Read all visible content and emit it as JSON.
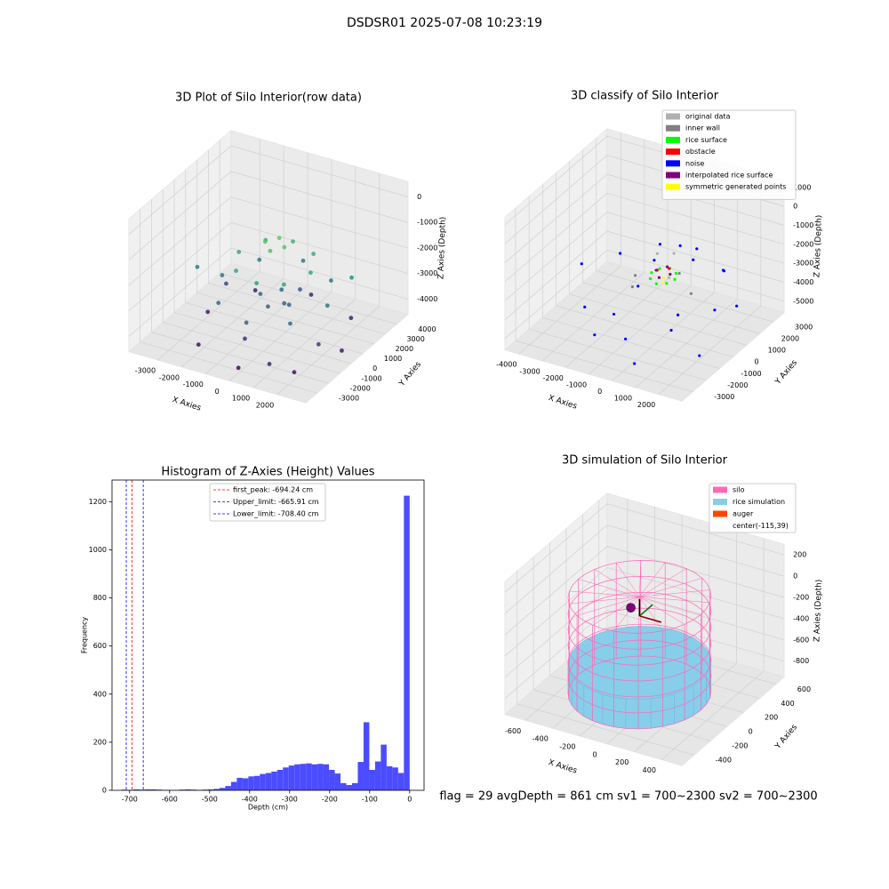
{
  "title": "DSDSR01 2025-07-08 10:23:19",
  "footer": "flag = 29  avgDepth = 861 cm  sv1 = 700~2300  sv2 = 700~2300",
  "chart_data": [
    {
      "type": "scatter3d",
      "title": "3D Plot of Silo Interior(row data)",
      "xlabel": "X Axies",
      "ylabel": "Y Axies",
      "zlabel": "Z Axies (Depth)",
      "colormap": "viridis",
      "xlim": [
        -4200,
        3200
      ],
      "ylim": [
        -4000,
        5000
      ],
      "zlim": [
        -4600,
        600
      ],
      "xticks": [
        -3000,
        -2000,
        -1000,
        0,
        1000,
        2000
      ],
      "yticks": [
        -3000,
        -2000,
        -1000,
        0,
        1000,
        2000,
        3000,
        4000
      ],
      "zticks": [
        -4000,
        -3000,
        -2000,
        -1000,
        0
      ],
      "x": [
        -1500,
        -1000,
        0,
        1000,
        1500,
        1000,
        0,
        -1000,
        -400,
        0,
        400,
        0,
        -2200,
        -1500,
        0,
        1500,
        2200,
        1500,
        0,
        -1500,
        -600,
        0,
        600,
        0,
        300,
        -2800,
        -2000,
        0,
        2000,
        2800,
        2000,
        0,
        -2000,
        -2600,
        2400,
        -300,
        200,
        -3000,
        2500,
        1200
      ],
      "y": [
        0,
        1300,
        1600,
        1300,
        0,
        -1300,
        -1600,
        -1300,
        0,
        400,
        0,
        -400,
        0,
        1800,
        2500,
        1800,
        0,
        -1800,
        -2500,
        -1800,
        0,
        600,
        0,
        -600,
        200,
        0,
        2500,
        3200,
        2500,
        0,
        -2500,
        -3200,
        -2500,
        1200,
        -1200,
        -2000,
        1800,
        -500,
        1500,
        -3000
      ],
      "z": [
        -1500,
        -1400,
        -1300,
        -1400,
        -1500,
        -1600,
        -1700,
        -1600,
        -800,
        -700,
        -800,
        -900,
        -2600,
        -2500,
        -2400,
        -2500,
        -2600,
        -2800,
        -2900,
        -2800,
        -2900,
        -2800,
        -3000,
        -3000,
        -3100,
        -4200,
        -4100,
        -4000,
        -4100,
        -4200,
        -4300,
        -4400,
        -4300,
        -3500,
        -3600,
        -3800,
        -3200,
        -2300,
        -2000,
        -4000
      ]
    },
    {
      "type": "scatter3d",
      "title": "3D classify of Silo Interior",
      "xlabel": "X Axies",
      "ylabel": "Y Axies",
      "zlabel": "Z Axies (Depth)",
      "xlim": [
        -4600,
        3000
      ],
      "ylim": [
        -3800,
        3800
      ],
      "zlim": [
        -5600,
        1400
      ],
      "xticks": [
        -4000,
        -3000,
        -2000,
        -1000,
        0,
        1000,
        2000
      ],
      "yticks": [
        -3000,
        -2000,
        -1000,
        0,
        1000,
        2000,
        3000
      ],
      "zticks": [
        -5000,
        -4000,
        -3000,
        -2000,
        -1000,
        0,
        1000
      ],
      "series": [
        {
          "name": "original data",
          "color": "#b0b0b0",
          "x": [
            -600,
            600,
            0
          ],
          "y": [
            600,
            -600,
            800
          ],
          "z": [
            -1800,
            -1900,
            -1700
          ]
        },
        {
          "name": "inner wall",
          "color": "#808080",
          "x": [
            -1200,
            1200,
            0,
            -800
          ],
          "y": [
            0,
            0,
            1200,
            -900
          ],
          "z": [
            -2800,
            -2900,
            -3000,
            -2700
          ]
        },
        {
          "name": "rice surface",
          "color": "#00ff00",
          "x": [
            -500,
            0,
            500,
            0,
            -350,
            350,
            350,
            -350
          ],
          "y": [
            0,
            500,
            0,
            -500,
            350,
            350,
            -350,
            -350
          ],
          "z": [
            -2400,
            -2300,
            -2400,
            -2500,
            -2350,
            -2350,
            -2450,
            -2450
          ]
        },
        {
          "name": "obstacle",
          "color": "#ff0000",
          "x": [
            200,
            -200
          ],
          "y": [
            100,
            -100
          ],
          "z": [
            -2000,
            -2100
          ]
        },
        {
          "name": "noise",
          "color": "#0000ff",
          "x": [
            -3000,
            -2000,
            -1000,
            0,
            1000,
            2000,
            2500,
            -2500,
            -1500,
            500,
            1500,
            -500,
            2000,
            -3500,
            0,
            1000,
            -1000,
            3000,
            -2000,
            1500
          ],
          "y": [
            2000,
            2800,
            3000,
            2500,
            2800,
            2000,
            -500,
            -1500,
            -2500,
            -3000,
            -2000,
            -1000,
            1000,
            0,
            -2800,
            500,
            1500,
            -2500,
            -200,
            -1500
          ],
          "z": [
            -3500,
            -4000,
            -3000,
            -2500,
            -3500,
            -4500,
            -3000,
            -4000,
            -4500,
            -5000,
            -3500,
            -2500,
            -2000,
            -3000,
            -4000,
            -1500,
            -2000,
            -4000,
            -5000,
            -3000
          ]
        },
        {
          "name": "interpolated rice surface",
          "color": "#800080",
          "x": [
            -300,
            0,
            300,
            0
          ],
          "y": [
            0,
            300,
            0,
            -300
          ],
          "z": [
            -2200,
            -2100,
            -2200,
            -2300
          ]
        },
        {
          "name": "symmetric generated points",
          "color": "#ffff00",
          "x": [
            100,
            -100
          ],
          "y": [
            -200,
            200
          ],
          "z": [
            -2600,
            -2650
          ]
        }
      ]
    },
    {
      "type": "histogram",
      "title": "Histogram of Z-Axies (Height) Values",
      "xlabel": "Depth (cm)",
      "ylabel": "Frequency",
      "color": "#4b4bff",
      "xlim": [
        -744,
        36
      ],
      "ylim": [
        0,
        1290
      ],
      "xticks": [
        -700,
        -600,
        -500,
        -400,
        -300,
        -200,
        -100,
        0
      ],
      "yticks": [
        0,
        200,
        400,
        600,
        800,
        1000,
        1200
      ],
      "bins": [
        -720,
        -705.6,
        -691.2,
        -676.8,
        -662.4,
        -648,
        -633.6,
        -619.2,
        -604.8,
        -590.4,
        -576,
        -561.6,
        -547.2,
        -532.8,
        -518.4,
        -504,
        -489.6,
        -475.2,
        -460.8,
        -446.4,
        -432,
        -417.6,
        -403.2,
        -388.8,
        -374.4,
        -360,
        -345.6,
        -331.2,
        -316.8,
        -302.4,
        -288,
        -273.6,
        -259.2,
        -244.8,
        -230.4,
        -216,
        -201.6,
        -187.2,
        -172.8,
        -158.4,
        -144,
        -129.6,
        -115.2,
        -100.8,
        -86.4,
        -72,
        -57.6,
        -43.2,
        -28.8,
        -14.4,
        0
      ],
      "values": [
        3,
        2,
        4,
        3,
        4,
        4,
        3,
        2,
        1,
        1,
        3,
        4,
        3,
        2,
        3,
        4,
        6,
        10,
        18,
        35,
        52,
        50,
        58,
        60,
        68,
        72,
        78,
        85,
        95,
        103,
        108,
        110,
        112,
        108,
        110,
        108,
        85,
        70,
        30,
        22,
        30,
        118,
        283,
        85,
        120,
        190,
        100,
        95,
        72,
        1225
      ],
      "lines": [
        {
          "label": "first_peak: -694.24 cm",
          "value": -694.24,
          "color": "#ff0000"
        },
        {
          "label": "Upper_limit: -665.91 cm",
          "value": -665.91,
          "color": "#0000ff"
        },
        {
          "label": "Lower_limit: -708.40 cm",
          "value": -708.4,
          "color": "#0000ff"
        }
      ]
    },
    {
      "type": "silo3d",
      "title": "3D simulation of Silo Interior",
      "xlabel": "X Axies",
      "ylabel": "Y Axies",
      "zlabel": "Z Axies (Depth)",
      "xlim": [
        -750,
        550
      ],
      "ylim": [
        -550,
        700
      ],
      "zlim": [
        -950,
        300
      ],
      "xticks": [
        -600,
        -400,
        -200,
        0,
        200,
        400
      ],
      "yticks": [
        -400,
        -200,
        0,
        200,
        400,
        600
      ],
      "zticks": [
        -800,
        -600,
        -400,
        -200,
        0,
        200
      ],
      "silo": {
        "name": "silo",
        "color": "#ff69b4",
        "center": [
          -115,
          39
        ],
        "radius": 450,
        "z": [
          -900,
          0
        ]
      },
      "rice": {
        "name": "rice simulation",
        "color": "#87ceeb",
        "z": [
          -900,
          -620
        ]
      },
      "auger": {
        "name": "auger",
        "color": "#ff4500",
        "origin": [
          -115,
          39,
          -180
        ],
        "length": 160,
        "axis_colors": [
          "#8b0000",
          "#008000",
          "#000000"
        ],
        "marker_color": "#800080"
      },
      "center_label": "center(-115,39)"
    }
  ]
}
